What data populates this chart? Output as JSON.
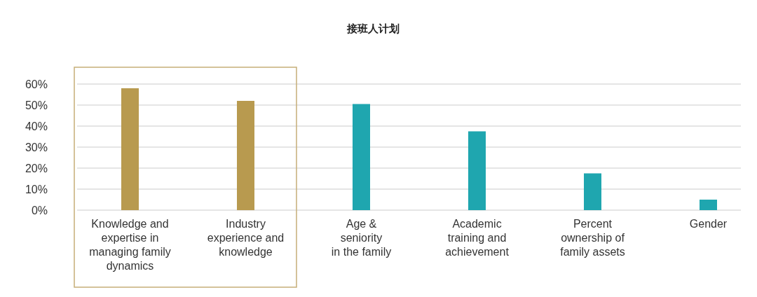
{
  "chart_data": {
    "type": "bar",
    "title": "接班人计划",
    "categories": [
      "Knowledge and\nexpertise in\nmanaging family\ndynamics",
      "Industry\nexperience and\nknowledge",
      "Age &\nseniority\nin the family",
      "Academic\ntraining and\nachievement",
      "Percent\nownership of\nfamily assets",
      "Gender"
    ],
    "values": [
      58,
      52,
      50.5,
      37.5,
      17.5,
      5
    ],
    "colors": [
      "#b89a4f",
      "#b89a4f",
      "#1fa6af",
      "#1fa6af",
      "#1fa6af",
      "#1fa6af"
    ],
    "ylim": [
      0,
      60
    ],
    "yticks": [
      {
        "value": 0,
        "label": "0%"
      },
      {
        "value": 10,
        "label": "10%"
      },
      {
        "value": 20,
        "label": "20%"
      },
      {
        "value": 30,
        "label": "30%"
      },
      {
        "value": 40,
        "label": "40%"
      },
      {
        "value": 50,
        "label": "50%"
      },
      {
        "value": 60,
        "label": "60%"
      }
    ],
    "grid": "y"
  }
}
